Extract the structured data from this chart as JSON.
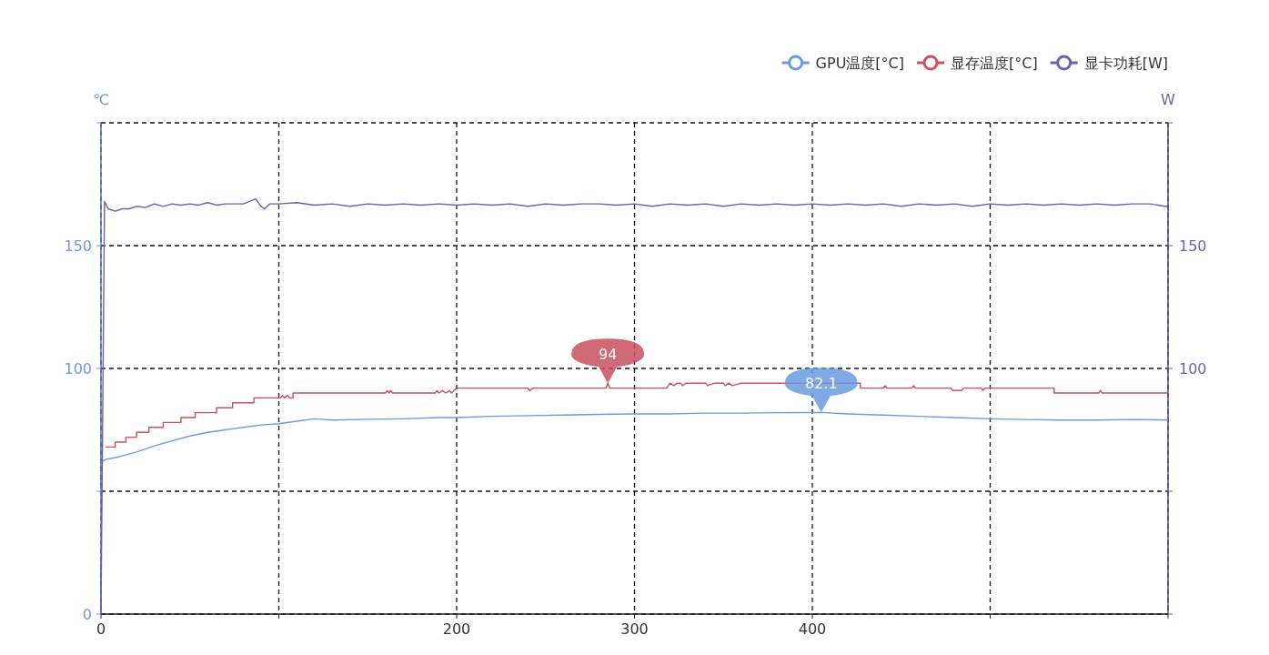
{
  "chart_data": {
    "type": "line",
    "ylabel": "℃",
    "y2label": "W",
    "legend": "top right",
    "grid": true,
    "xlim": [
      0,
      600
    ],
    "xticks": [
      0,
      {
        "value": 100,
        "label": null
      },
      200,
      300,
      400,
      {
        "value": 500,
        "label": null
      },
      {
        "value": 600,
        "label": null
      }
    ],
    "ylim": [
      0,
      200
    ],
    "yticks": [
      0,
      {
        "value": 50,
        "label": null
      },
      100,
      150,
      {
        "value": 200,
        "label": null
      }
    ],
    "y2lim": [
      0,
      200
    ],
    "y2ticks": [
      {
        "value": 0,
        "label": null
      },
      {
        "value": 50,
        "label": null
      },
      100,
      150,
      {
        "value": 200,
        "label": null
      }
    ],
    "annotations": [
      {
        "text": "94",
        "x": 285,
        "y": 94
      },
      {
        "text": "82.1",
        "x": 405,
        "y": 82.1
      }
    ],
    "series": [
      {
        "name": "GPU温度[°C]",
        "color": "#6a9be0",
        "x": [
          0,
          3,
          10,
          20,
          30,
          40,
          50,
          60,
          70,
          80,
          90,
          100,
          110,
          120,
          130,
          150,
          170,
          190,
          200,
          220,
          240,
          260,
          280,
          300,
          320,
          340,
          360,
          380,
          405,
          420,
          440,
          460,
          480,
          500,
          520,
          540,
          560,
          580,
          600
        ],
        "values": [
          62,
          63,
          64,
          66,
          68.5,
          70.5,
          72.5,
          74,
          75,
          76,
          77,
          77.5,
          78.5,
          79.5,
          79,
          79.3,
          79.5,
          80,
          80,
          80.5,
          80.8,
          81,
          81.3,
          81.5,
          81.5,
          81.8,
          81.8,
          82,
          82.1,
          81.5,
          81,
          80.5,
          80,
          79.5,
          79.2,
          79,
          79,
          79.2,
          79
        ]
      },
      {
        "name": "显存温度[°C]",
        "color": "#c9505f",
        "x": [
          3,
          8,
          8,
          14,
          14,
          20,
          20,
          27,
          27,
          35,
          35,
          45,
          45,
          53,
          53,
          65,
          65,
          74,
          74,
          86,
          86,
          101,
          102,
          103,
          105,
          106,
          108,
          108,
          160,
          161,
          162,
          163,
          164,
          188,
          189,
          190,
          192,
          194,
          196,
          197,
          200,
          240,
          241,
          243,
          284,
          285,
          286,
          318,
          319,
          320,
          322,
          324,
          326,
          327,
          329,
          340,
          341,
          345,
          350,
          351,
          353,
          355,
          360,
          427,
          427,
          440,
          441,
          442,
          456,
          457,
          458,
          478,
          479,
          484,
          485,
          495,
          496,
          497,
          536,
          536,
          561,
          562,
          563,
          600
        ],
        "values": [
          68,
          68,
          70,
          70,
          72,
          72,
          74,
          74,
          76,
          76,
          78,
          78,
          80,
          80,
          82,
          82,
          84,
          84,
          86,
          86,
          88,
          88,
          89,
          88,
          89,
          88,
          88,
          90,
          90,
          91,
          90,
          91,
          90,
          90,
          91,
          90,
          91,
          90,
          91,
          90,
          92,
          92,
          91,
          92,
          92,
          94,
          92,
          92,
          93,
          94,
          93,
          94,
          94,
          93,
          94,
          94,
          93,
          94,
          94,
          93,
          94,
          93,
          94,
          94,
          92,
          92,
          93,
          92,
          92,
          93,
          92,
          92,
          91,
          91,
          92,
          92,
          91,
          92,
          92,
          90,
          90,
          91,
          90,
          90
        ]
      },
      {
        "name": "显卡功耗[W]",
        "color": "#6b5fb5",
        "axis": "y2",
        "x": [
          0,
          2,
          4,
          8,
          12,
          16,
          20,
          25,
          30,
          35,
          40,
          45,
          50,
          55,
          60,
          65,
          70,
          75,
          80,
          87,
          90,
          92,
          95,
          100,
          110,
          120,
          130,
          140,
          150,
          160,
          170,
          180,
          190,
          200,
          210,
          220,
          230,
          240,
          250,
          260,
          270,
          280,
          290,
          300,
          310,
          320,
          330,
          340,
          350,
          360,
          370,
          380,
          390,
          400,
          410,
          420,
          430,
          440,
          450,
          460,
          470,
          480,
          490,
          500,
          510,
          520,
          530,
          540,
          550,
          560,
          570,
          580,
          590,
          598,
          600
        ],
        "values": [
          0,
          168,
          165,
          164,
          165,
          165,
          166,
          165.5,
          167,
          166,
          167,
          166.5,
          167,
          166.5,
          167.5,
          166.5,
          167,
          167,
          167,
          169,
          166,
          165,
          167,
          167,
          167.5,
          166.5,
          167,
          166,
          167,
          166.5,
          167,
          166.5,
          167,
          166.5,
          167,
          166.5,
          167,
          166,
          167,
          166.5,
          167,
          167,
          166.5,
          167,
          166,
          167,
          166.5,
          167,
          166,
          167,
          166.5,
          167,
          166.5,
          167,
          166.5,
          167,
          166.5,
          167,
          166,
          167,
          166.5,
          167,
          166,
          167,
          166.5,
          167,
          166.5,
          167,
          166.5,
          167,
          166.5,
          167,
          167,
          166,
          166
        ]
      }
    ]
  }
}
